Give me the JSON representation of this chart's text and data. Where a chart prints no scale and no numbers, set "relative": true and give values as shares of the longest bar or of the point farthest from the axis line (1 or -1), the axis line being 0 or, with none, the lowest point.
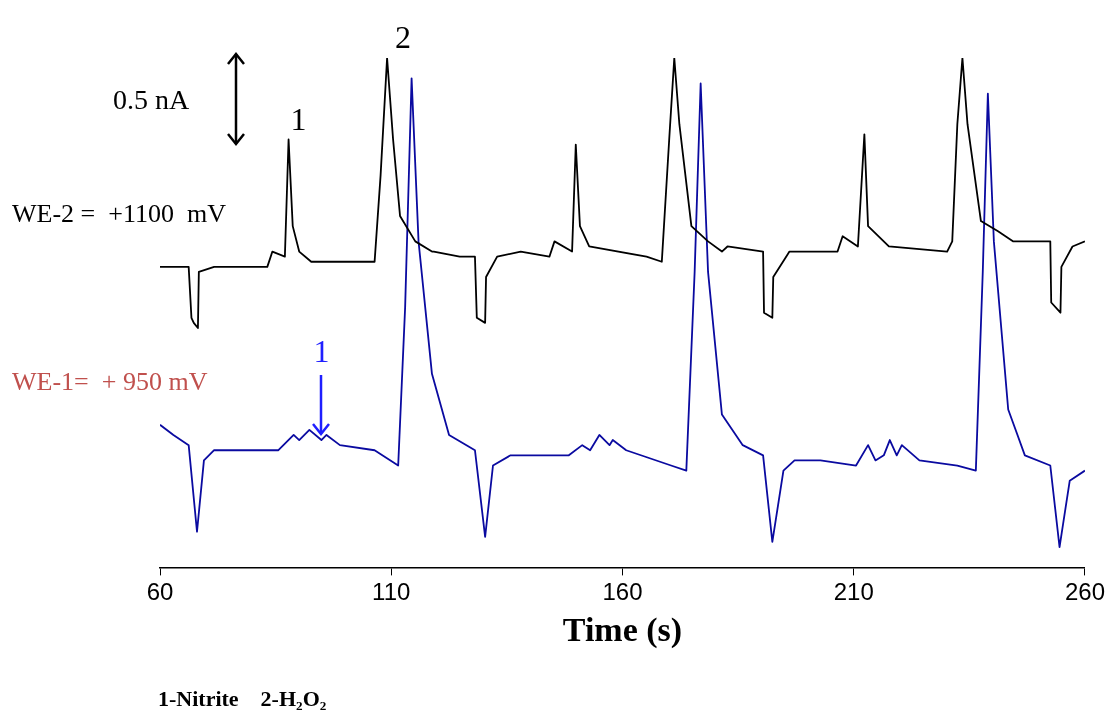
{
  "chart_data": {
    "type": "line",
    "relative": true,
    "xlabel": "Time (s)",
    "xlim": [
      60,
      260
    ],
    "xticks": [
      60,
      110,
      160,
      210,
      260
    ],
    "grid": false,
    "legend": false,
    "marker": "none",
    "line_style": "solid",
    "series": [
      {
        "name": "WE-2 =  +1100  mV",
        "color": "#000000",
        "x": [
          60,
          66.2,
          66.8,
          67.3,
          68.2,
          68.4,
          71.7,
          83.2,
          84.3,
          87.0,
          87.8,
          88.7,
          90.1,
          92.7,
          106.4,
          107.7,
          109.1,
          110.4,
          111.9,
          115.2,
          118.8,
          119.2,
          124.8,
          128.1,
          128.5,
          130.3,
          130.5,
          132.9,
          138.0,
          144.2,
          145.3,
          149.1,
          149.9,
          150.8,
          152.8,
          165.2,
          168.5,
          170.1,
          171.2,
          172.3,
          174.9,
          178.5,
          181.5,
          182.7,
          190.4,
          190.6,
          192.4,
          192.6,
          196.1,
          205.0,
          206.5,
          207.6,
          210.9,
          212.3,
          213.1,
          217.6,
          230.2,
          231.3,
          232.4,
          233.5,
          234.6,
          237.5,
          241.2,
          244.5,
          245.6,
          252.5,
          252.7,
          254.7,
          254.9,
          257.3,
          260
        ],
        "values": [
          0.59,
          0.59,
          0.49,
          0.48,
          0.47,
          0.58,
          0.59,
          0.59,
          0.62,
          0.61,
          0.84,
          0.67,
          0.62,
          0.6,
          0.6,
          0.77,
          1.0,
          0.84,
          0.69,
          0.64,
          0.62,
          0.62,
          0.61,
          0.61,
          0.49,
          0.48,
          0.57,
          0.61,
          0.62,
          0.61,
          0.64,
          0.62,
          0.83,
          0.67,
          0.63,
          0.61,
          0.6,
          0.84,
          1.0,
          0.87,
          0.67,
          0.64,
          0.62,
          0.63,
          0.62,
          0.5,
          0.49,
          0.57,
          0.62,
          0.62,
          0.62,
          0.65,
          0.63,
          0.85,
          0.67,
          0.63,
          0.62,
          0.64,
          0.87,
          1.0,
          0.87,
          0.68,
          0.66,
          0.64,
          0.64,
          0.64,
          0.52,
          0.5,
          0.59,
          0.63,
          0.64
        ]
      },
      {
        "name": "WE-1=  + 950 mV",
        "color": "#0a0aa0",
        "x": [
          60,
          62.9,
          66.2,
          68.0,
          69.5,
          71.7,
          85.6,
          88.9,
          90.1,
          92.3,
          94.9,
          96.0,
          98.9,
          106.4,
          111.5,
          113.0,
          114.4,
          115.9,
          118.8,
          122.5,
          128.1,
          130.3,
          132.0,
          135.8,
          148.4,
          151.3,
          153.0,
          155.0,
          157.2,
          157.9,
          160.8,
          170.5,
          173.8,
          175.6,
          176.9,
          178.5,
          181.5,
          186.0,
          190.4,
          192.4,
          194.8,
          197.2,
          202.8,
          210.5,
          213.1,
          214.7,
          216.5,
          217.8,
          219.3,
          220.4,
          224.2,
          232.4,
          236.4,
          237.9,
          239.0,
          240.3,
          243.4,
          247.0,
          252.5,
          254.5,
          256.7,
          260
        ],
        "values": [
          0.28,
          0.26,
          0.24,
          0.07,
          0.21,
          0.23,
          0.23,
          0.26,
          0.25,
          0.27,
          0.25,
          0.26,
          0.24,
          0.23,
          0.2,
          0.51,
          0.96,
          0.64,
          0.38,
          0.26,
          0.23,
          0.06,
          0.2,
          0.22,
          0.22,
          0.24,
          0.23,
          0.26,
          0.24,
          0.25,
          0.23,
          0.2,
          0.19,
          0.58,
          0.95,
          0.58,
          0.3,
          0.24,
          0.22,
          0.05,
          0.19,
          0.21,
          0.21,
          0.2,
          0.24,
          0.21,
          0.22,
          0.25,
          0.22,
          0.24,
          0.21,
          0.2,
          0.19,
          0.58,
          0.93,
          0.64,
          0.31,
          0.22,
          0.2,
          0.04,
          0.17,
          0.19
        ]
      }
    ],
    "annotations": [
      "0.5 nA",
      {
        "text": "1",
        "x": 87.8,
        "y": 0.84
      },
      {
        "text": "2",
        "x": 109.1,
        "y": 1.0
      },
      {
        "text": "1",
        "x": 94.9,
        "y": 0.25
      },
      "1-Nitrite    2-H₂O₂"
    ]
  }
}
